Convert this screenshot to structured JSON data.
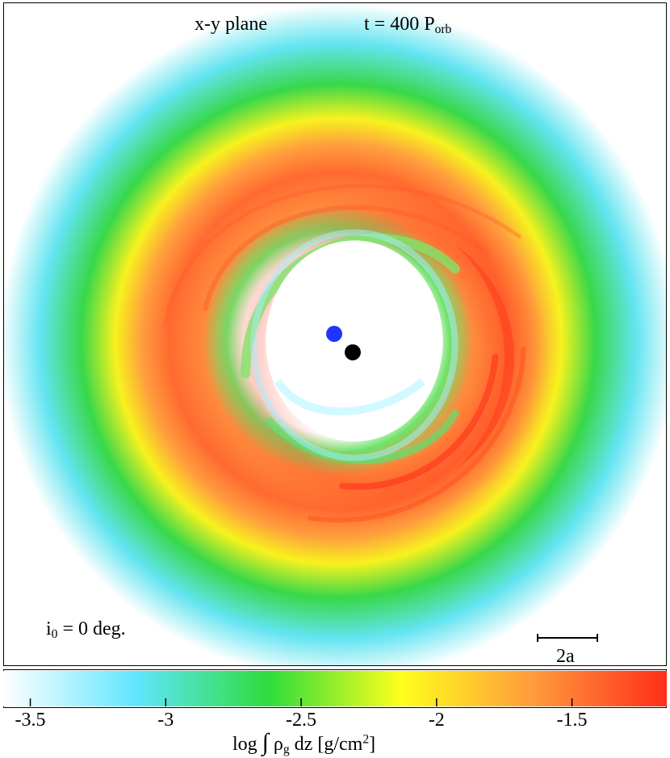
{
  "title": {
    "left": "x-y plane",
    "right_prefix": "t = 400 P",
    "right_sub": "orb"
  },
  "inclination": {
    "prefix": "i",
    "sub": "0",
    "suffix": " = 0 deg."
  },
  "scale": {
    "label": "2a"
  },
  "stars": {
    "primary_color": "#1f35ff",
    "secondary_color": "#000000"
  },
  "colorbar": {
    "ticks": [
      "-3.5",
      "-3",
      "-2.5",
      "-2",
      "-1.5"
    ],
    "tick_values": [
      -3.5,
      -3,
      -2.5,
      -2,
      -1.5
    ],
    "range": [
      -3.6,
      -1.15
    ],
    "colors": [
      "#ffffff",
      "#60e6ff",
      "#2ddc3c",
      "#ffff1c",
      "#ff9a3c",
      "#ff2e1a"
    ],
    "label_prefix": "log ",
    "label_integral": "∫",
    "label_rho": " ρ",
    "label_sub": "g",
    "label_mid": " dz [g/cm",
    "label_sup": "2",
    "label_end": "]"
  }
}
